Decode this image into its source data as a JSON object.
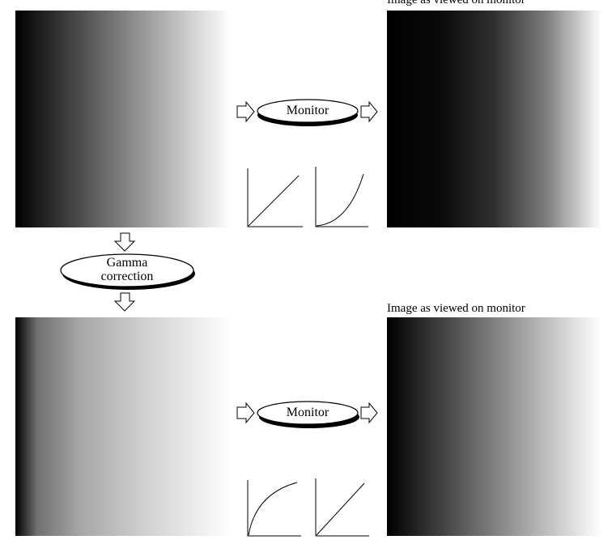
{
  "diagram": {
    "caption_top": "Image as viewed on monitor",
    "caption_bottom": "Image as viewed on monitor",
    "monitor_label_top": "Monitor",
    "monitor_label_bottom": "Monitor",
    "gamma_label_line1": "Gamma",
    "gamma_label_line2": "correction",
    "gradient_colors": {
      "dark": "#000000",
      "light": "#ffffff"
    }
  }
}
